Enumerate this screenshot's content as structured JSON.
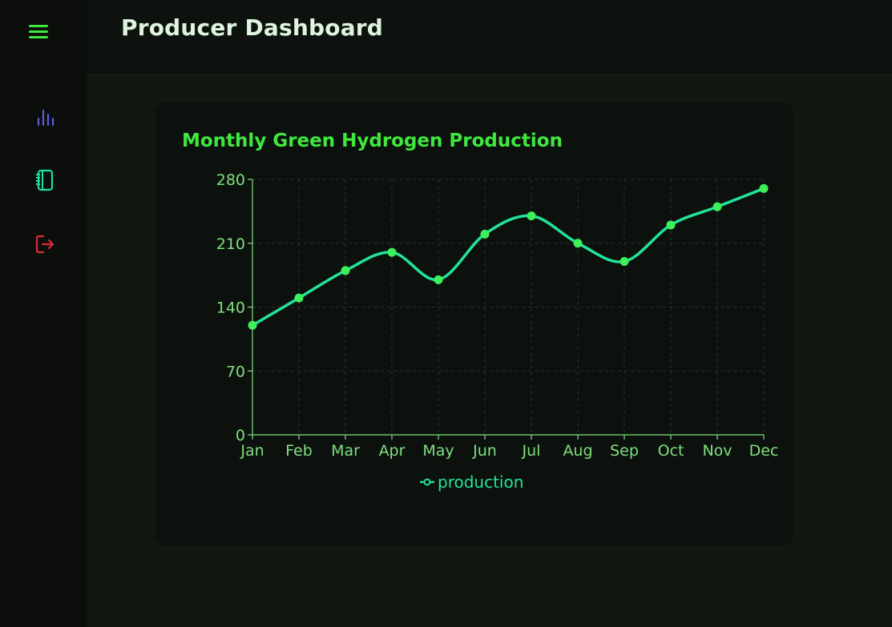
{
  "sidebar": {
    "menu_icon": "hamburger-menu-icon",
    "items": [
      {
        "icon": "bar-chart-icon",
        "color": "#5a5fd8"
      },
      {
        "icon": "notebook-icon",
        "color": "#1fe0a0"
      },
      {
        "icon": "logout-icon",
        "color": "#e0263e"
      }
    ],
    "menu_color": "#3ee83e"
  },
  "header": {
    "title": "Producer Dashboard"
  },
  "card": {
    "title": "Monthly Green Hydrogen Production"
  },
  "colors": {
    "accent": "#3ee83e",
    "line": "#22e39a",
    "point": "#3df05a",
    "axis": "#7fe07f",
    "grid": "#2a332a"
  },
  "chart_data": {
    "type": "line",
    "categories": [
      "Jan",
      "Feb",
      "Mar",
      "Apr",
      "May",
      "Jun",
      "Jul",
      "Aug",
      "Sep",
      "Oct",
      "Nov",
      "Dec"
    ],
    "series": [
      {
        "name": "production",
        "values": [
          120,
          150,
          180,
          200,
          170,
          220,
          240,
          210,
          190,
          230,
          250,
          270
        ]
      }
    ],
    "ylim": [
      0,
      280
    ],
    "yticks": [
      0,
      70,
      140,
      210,
      280
    ],
    "grid": true,
    "legend": "bottom-center",
    "curve": "smooth"
  }
}
